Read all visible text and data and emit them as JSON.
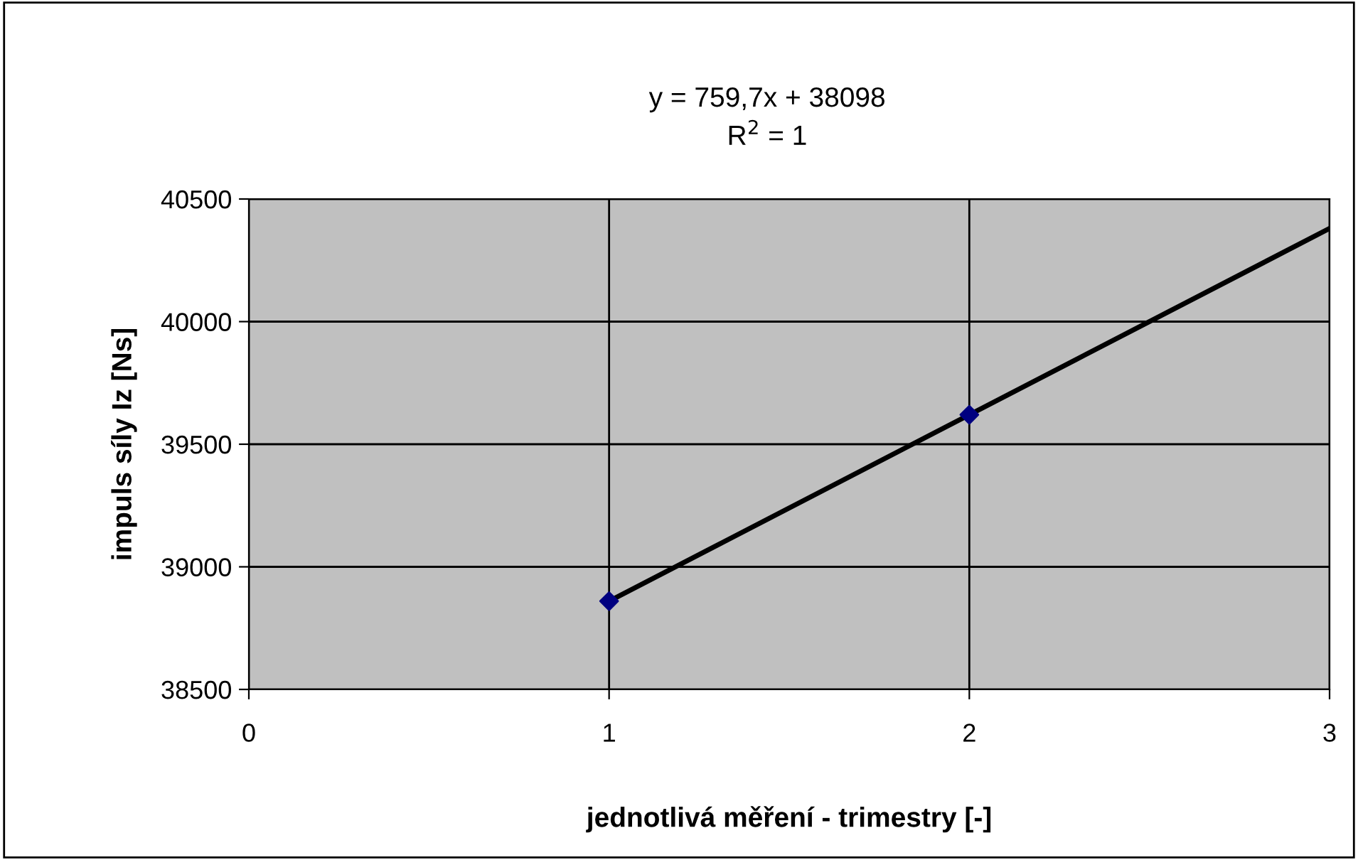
{
  "chart_data": {
    "type": "scatter",
    "xlabel": "jednotlivá měření - trimestry [-]",
    "ylabel": "impuls síly Iz [Ns]",
    "annotations": [
      "y = 759,7x + 38098",
      "R$^{2}$ = 1"
    ],
    "series": [
      {
        "color": "#000080",
        "x": [
          1,
          2
        ],
        "values": [
          38860,
          39620
        ],
        "marker": "diamond"
      },
      {
        "type": "line",
        "color": "#000000",
        "x": [
          1,
          3
        ],
        "values": [
          38860,
          40380
        ],
        "marker": "none",
        "line_style": "solid"
      }
    ],
    "xlim": [
      0,
      3
    ],
    "xticks": [
      0,
      1,
      2,
      3
    ],
    "ylim": [
      38500,
      40500
    ],
    "yticks": [
      38500,
      39000,
      39500,
      40000,
      40500
    ],
    "grid": true,
    "legend": false
  }
}
